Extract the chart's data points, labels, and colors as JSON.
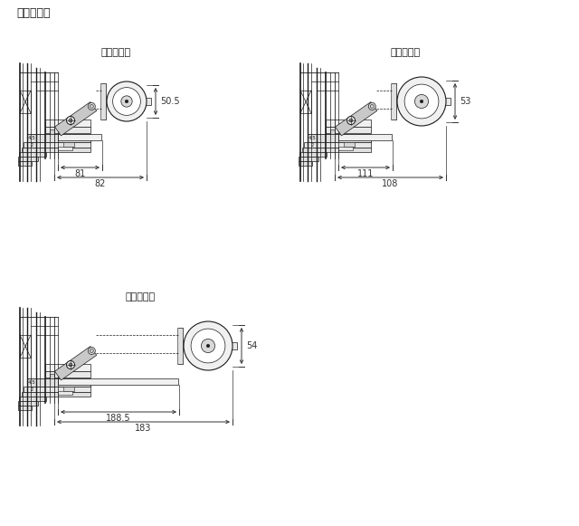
{
  "title": "滑車納まり",
  "d1_title": "滑車（小）",
  "d2_title": "滑車（中）",
  "d3_title": "滑車（大）",
  "dim1_v": "50.5",
  "dim1_h1": "81",
  "dim1_h2": "82",
  "dim2_v": "53",
  "dim2_h1": "111",
  "dim2_h2": "108",
  "dim3_v": "54",
  "dim3_h1": "188.5",
  "dim3_h2": "183",
  "lc": "#1a1a1a",
  "dc": "#333333",
  "bg": "#ffffff"
}
